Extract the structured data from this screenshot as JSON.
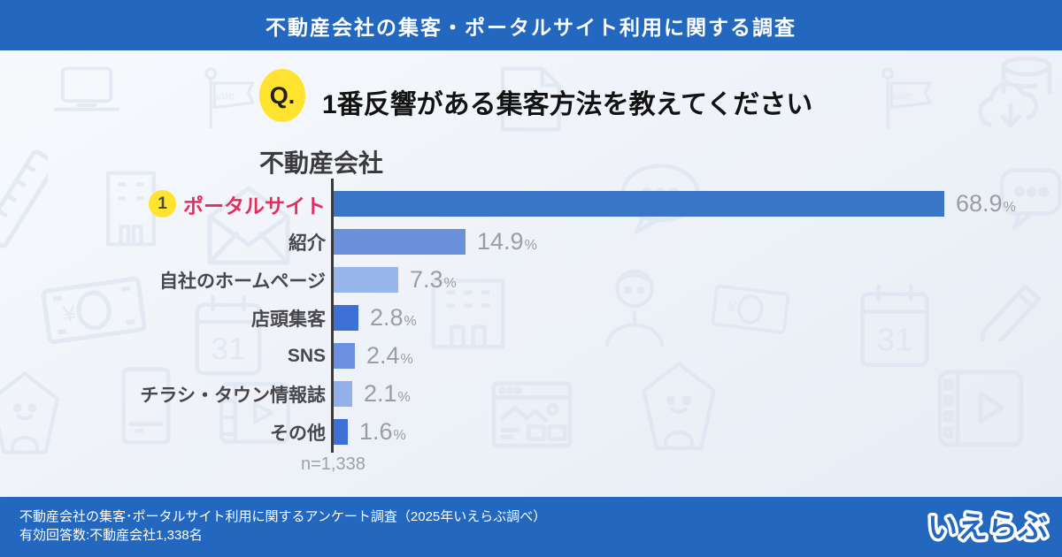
{
  "header": {
    "title": "不動産会社の集客・ポータルサイト利用に関する調査"
  },
  "question": {
    "badge": "Q.",
    "text": "1番反響がある集客方法を教えてください"
  },
  "chart_data": {
    "type": "bar",
    "orientation": "horizontal",
    "title": "不動産会社",
    "unit": "%",
    "xlim": [
      0,
      70
    ],
    "n_label": "n=1,338",
    "categories": [
      "ポータルサイト",
      "紹介",
      "自社のホームページ",
      "店頭集客",
      "SNS",
      "チラシ・タウン情報誌",
      "その他"
    ],
    "values": [
      68.9,
      14.9,
      7.3,
      2.8,
      2.4,
      2.1,
      1.6
    ],
    "rows": [
      {
        "rank": "1",
        "label": "ポータルサイト",
        "value": 68.9,
        "display": "68.9",
        "color": "#3b75c8",
        "highlight": true
      },
      {
        "label": "紹介",
        "value": 14.9,
        "display": "14.9",
        "color": "#6a90d9",
        "highlight": false
      },
      {
        "label": "自社のホームページ",
        "value": 7.3,
        "display": "7.3",
        "color": "#97b6ec",
        "highlight": false
      },
      {
        "label": "店頭集客",
        "value": 2.8,
        "display": "2.8",
        "color": "#3c70d4",
        "highlight": false
      },
      {
        "label": "SNS",
        "value": 2.4,
        "display": "2.4",
        "color": "#6b90e1",
        "highlight": false
      },
      {
        "label": "チラシ・タウン情報誌",
        "value": 2.1,
        "display": "2.1",
        "color": "#92b1eb",
        "highlight": false
      },
      {
        "label": "その他",
        "value": 1.6,
        "display": "1.6",
        "color": "#3e6fd5",
        "highlight": false
      }
    ]
  },
  "background": {
    "sale_label": "sale",
    "calendar_label": "31"
  },
  "footer": {
    "line1": "不動産会社の集客･ポータルサイト利用に関するアンケート調査（2025年いえらぶ調べ）",
    "line2": "有効回答数:不動産会社1,338名",
    "logo_text": "いえらぶ"
  },
  "colors": {
    "brand_blue": "#2368be",
    "highlight_pink": "#e62e5e",
    "badge_yellow": "#ffe32e",
    "value_gray": "#9c9ca4",
    "bar_dark": "#3b75c8",
    "bar_medium": "#6a90d9",
    "bar_light": "#97b6ec"
  }
}
